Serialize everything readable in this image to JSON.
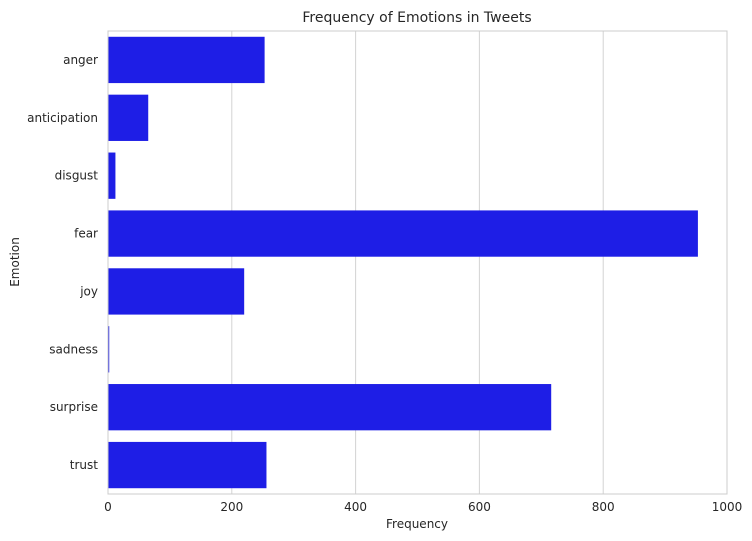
{
  "chart_data": {
    "type": "bar",
    "orientation": "horizontal",
    "title": "Frequency of Emotions in Tweets",
    "xlabel": "Frequency",
    "ylabel": "Emotion",
    "categories": [
      "anger",
      "anticipation",
      "disgust",
      "fear",
      "joy",
      "sadness",
      "surprise",
      "trust"
    ],
    "values": [
      253,
      65,
      12,
      953,
      220,
      2,
      716,
      256
    ],
    "xlim": [
      0,
      1000
    ],
    "xticks": [
      "0",
      "200",
      "400",
      "600",
      "800",
      "1000"
    ],
    "grid": "vertical",
    "bar_color": "#1e1ee6"
  }
}
